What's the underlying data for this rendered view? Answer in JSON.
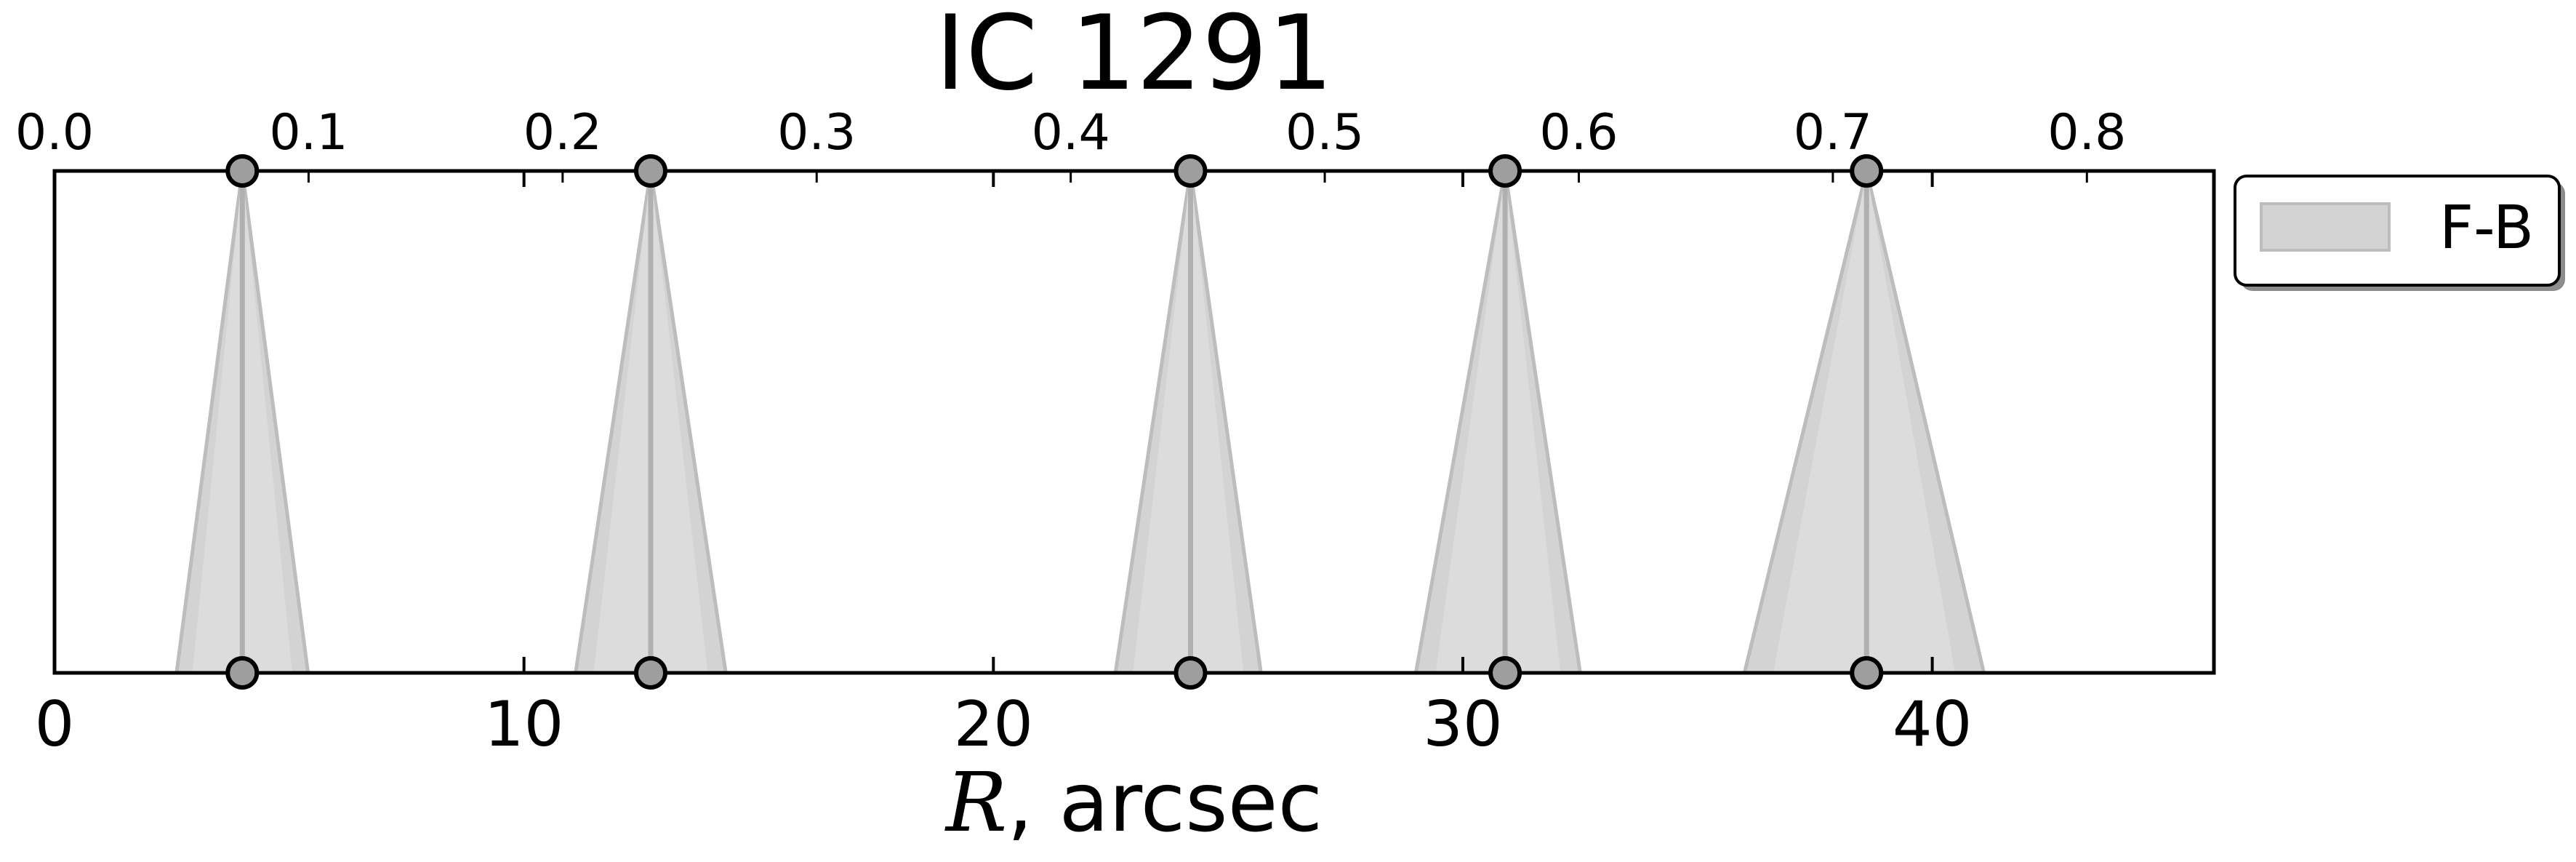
{
  "chart_data": {
    "type": "area",
    "title": "IC 1291",
    "xlabel_symbol": "R",
    "xlabel_rest": ", arcsec",
    "xlim": [
      0,
      46
    ],
    "xticks": [
      0,
      10,
      20,
      30,
      40
    ],
    "xtick_labels": [
      "0",
      "10",
      "20",
      "30",
      "40"
    ],
    "top_axis": {
      "xlim": [
        0,
        0.85
      ],
      "xticks": [
        0.0,
        0.1,
        0.2,
        0.3,
        0.4,
        0.5,
        0.6,
        0.7,
        0.8
      ],
      "xtick_labels": [
        "0.0",
        "0.1",
        "0.2",
        "0.3",
        "0.4",
        "0.5",
        "0.6",
        "0.7",
        "0.8"
      ]
    },
    "grid": false,
    "legend_position": "outside-right-top",
    "series": [
      {
        "name": "F-B",
        "color": "#d3d3d3",
        "edge_color": "#bdbdbd",
        "points": [
          {
            "x": 4.0,
            "base_left": 2.6,
            "base_right": 5.4
          },
          {
            "x": 12.7,
            "base_left": 11.1,
            "base_right": 14.3
          },
          {
            "x": 24.2,
            "base_left": 22.6,
            "base_right": 25.7
          },
          {
            "x": 30.9,
            "base_left": 29.0,
            "base_right": 32.5
          },
          {
            "x": 38.6,
            "base_left": 36.0,
            "base_right": 41.1
          }
        ]
      }
    ]
  }
}
